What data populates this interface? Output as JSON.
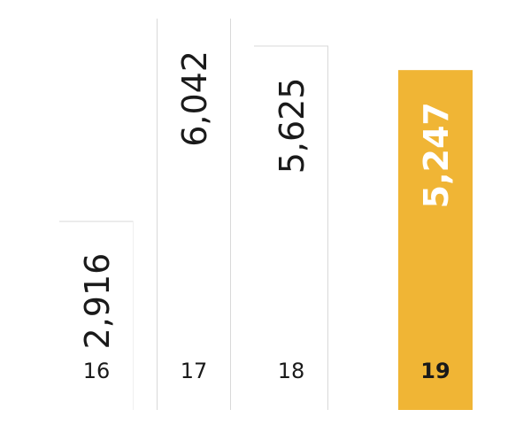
{
  "chart_data": {
    "type": "bar",
    "categories": [
      "16",
      "17",
      "18",
      "19"
    ],
    "values": [
      2916,
      6042,
      5625,
      5247
    ],
    "value_labels": [
      "2,916",
      "6,042",
      "5,625",
      "5,247"
    ],
    "highlighted_index": 3,
    "ylim": [
      0,
      6042
    ],
    "grid": false,
    "colors": {
      "highlight": "#F0B535",
      "outline": "#D9D9D9",
      "text": "#1A1A1A",
      "highlight_text": "#FFFFFF"
    }
  }
}
